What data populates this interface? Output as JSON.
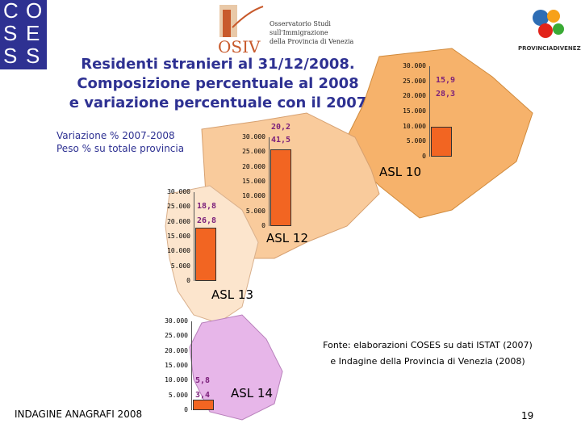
{
  "logos": {
    "coses_letters": [
      "C",
      "O",
      "S",
      "E",
      "S",
      "S"
    ],
    "osiv_mark": "OSIV",
    "osiv_text": [
      "Osservatorio Studi",
      "sull'Immigrazione",
      "della Provincia di Venezia"
    ],
    "provincia": "PROVINCIADIVENEZIA"
  },
  "title_lines": [
    "Residenti stranieri al 31/12/2008.",
    "Composizione percentuale al 2008",
    "e variazione percentuale con il 2007"
  ],
  "legend_lines": [
    "Variazione % 2007-2008",
    "Peso % su totale provincia"
  ],
  "colors": {
    "title": "#2e3192",
    "bar": "#f26522",
    "label": "#7b1f7a",
    "asl10": "#f6b26b",
    "asl12": "#f9cb9c",
    "asl13": "#fce5cd",
    "asl14": "#e7b6e9"
  },
  "source_lines": [
    "Fonte: elaborazioni COSES su dati ISTAT (2007)",
    "e Indagine della Provincia di Venezia (2008)"
  ],
  "footer": "INDAGINE ANAGRAFI 2008",
  "page_number": "19",
  "chart_data": [
    {
      "type": "bar",
      "region": "ASL 10",
      "ticks": [
        "30.000",
        "25.000",
        "20.000",
        "15.000",
        "10.000",
        "5.000",
        "0"
      ],
      "ylim": [
        0,
        30000
      ],
      "value": 10000,
      "labels": [
        "15,9",
        "28,3"
      ]
    },
    {
      "type": "bar",
      "region": "ASL 12",
      "ticks": [
        "30.000",
        "25.000",
        "20.000",
        "15.000",
        "10.000",
        "5.000",
        "0"
      ],
      "ylim": [
        0,
        30000
      ],
      "value": 26000,
      "labels": [
        "20,2",
        "41,5"
      ]
    },
    {
      "type": "bar",
      "region": "ASL 13",
      "ticks": [
        "30.000",
        "25.000",
        "20.000",
        "15.000",
        "10.000",
        "5.000",
        "0"
      ],
      "ylim": [
        0,
        30000
      ],
      "value": 18000,
      "labels": [
        "18,8",
        "26,8"
      ]
    },
    {
      "type": "bar",
      "region": "ASL 14",
      "ticks": [
        "30.000",
        "25.000",
        "20.000",
        "15.000",
        "10.000",
        "5.000",
        "0"
      ],
      "ylim": [
        0,
        30000
      ],
      "value": 3500,
      "labels": [
        "5,8",
        "3,4"
      ]
    }
  ]
}
